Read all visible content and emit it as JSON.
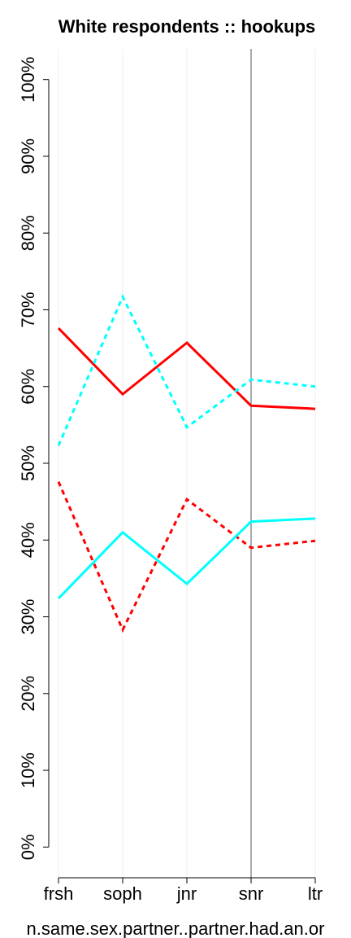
{
  "chart_data": {
    "type": "line",
    "title": "White respondents :: hookups",
    "xlabel": "n.same.sex.partner..partner.had.an.or",
    "categories": [
      "frsh",
      "soph",
      "jnr",
      "snr",
      "ltr"
    ],
    "series": [
      {
        "color": "#ff0000",
        "dashed": false,
        "values": [
          67.6,
          59.0,
          65.7,
          57.5,
          57.1
        ]
      },
      {
        "color": "#ff0000",
        "dashed": true,
        "values": [
          47.6,
          28.3,
          45.3,
          39.0,
          39.9
        ]
      },
      {
        "color": "#00ffff",
        "dashed": false,
        "values": [
          32.4,
          41.0,
          34.3,
          42.4,
          42.8
        ]
      },
      {
        "color": "#00ffff",
        "dashed": true,
        "values": [
          52.3,
          71.7,
          54.7,
          60.9,
          60.0
        ]
      }
    ],
    "ylim": [
      -4,
      104
    ],
    "yticks": [
      {
        "value": 0,
        "label": "0%"
      },
      {
        "value": 10,
        "label": "10%"
      },
      {
        "value": 20,
        "label": "20%"
      },
      {
        "value": 30,
        "label": "30%"
      },
      {
        "value": 40,
        "label": "40%"
      },
      {
        "value": 50,
        "label": "50%"
      },
      {
        "value": 60,
        "label": "60%"
      },
      {
        "value": 70,
        "label": "70%"
      },
      {
        "value": 80,
        "label": "80%"
      },
      {
        "value": 90,
        "label": "90%"
      },
      {
        "value": 100,
        "label": "100%"
      }
    ],
    "vline": "snr",
    "grid": true
  }
}
